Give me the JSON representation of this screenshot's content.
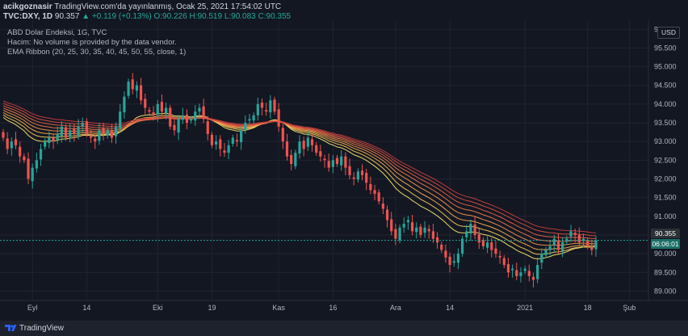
{
  "header": {
    "publisher": "acikgoznasir",
    "published_text": "TradingView.com'da yayınlanmış, Ocak 25, 2021 17:54:02 UTC",
    "symbol": "TVC:DXY, 1D",
    "last": "90.357",
    "change": "▲ +0.119 (+0.13%)",
    "open": "O:90.226",
    "high": "H:90.519",
    "low": "L:90.083",
    "close": "C:90.355"
  },
  "legend": {
    "title": "ABD Dolar Endeksi, 1G, TVC",
    "volume_note": "Hacim: No volume is provided by the data vendor.",
    "indicator": "EMA Ribbon (20, 25, 30, 35, 40, 45, 50, 55, close, 1)"
  },
  "price_axis": {
    "currency_button": "USD",
    "current_price": "90.355",
    "countdown": "06:06:01"
  },
  "footer": {
    "brand": "TradingView"
  },
  "colors": {
    "background": "#131722",
    "up": "#26a69a",
    "down": "#ef5350",
    "grid": "#1f2430"
  },
  "chart_data": {
    "type": "candlestick",
    "title": "ABD Dolar Endeksi, 1G, TVC",
    "ylim": [
      88.75,
      96.2
    ],
    "y_ticks": [
      "89.000",
      "89.500",
      "90.000",
      "90.500",
      "91.000",
      "91.500",
      "92.000",
      "92.500",
      "93.000",
      "93.500",
      "94.000",
      "94.500",
      "95.000",
      "95.500",
      "96.000"
    ],
    "x_ticks": [
      {
        "label": "Eyl",
        "index": 7
      },
      {
        "label": "14",
        "index": 20
      },
      {
        "label": "Eki",
        "index": 37
      },
      {
        "label": "19",
        "index": 50
      },
      {
        "label": "Kas",
        "index": 66
      },
      {
        "label": "16",
        "index": 79
      },
      {
        "label": "Ara",
        "index": 94
      },
      {
        "label": "14",
        "index": 107
      },
      {
        "label": "2021",
        "index": 125
      },
      {
        "label": "18",
        "index": 140
      },
      {
        "label": "Şub",
        "index": 150
      }
    ],
    "closes": [
      93.1,
      92.8,
      93.0,
      92.9,
      92.6,
      92.5,
      92.0,
      92.3,
      92.5,
      92.8,
      93.0,
      93.1,
      93.0,
      93.2,
      93.4,
      93.1,
      93.3,
      93.2,
      93.4,
      93.5,
      93.2,
      93.1,
      93.0,
      93.3,
      93.2,
      93.3,
      93.1,
      93.4,
      93.8,
      94.2,
      94.6,
      94.4,
      94.5,
      94.1,
      93.9,
      93.8,
      93.7,
      94.0,
      93.8,
      93.9,
      93.4,
      93.3,
      93.6,
      93.7,
      93.5,
      93.6,
      93.8,
      93.9,
      93.6,
      93.2,
      92.9,
      93.0,
      92.8,
      92.7,
      92.9,
      93.1,
      93.0,
      93.3,
      93.5,
      93.6,
      93.7,
      94.0,
      93.9,
      93.8,
      94.1,
      93.8,
      93.4,
      93.0,
      92.6,
      92.4,
      92.7,
      93.0,
      92.8,
      93.1,
      92.9,
      92.7,
      92.6,
      92.5,
      92.3,
      92.5,
      92.4,
      92.6,
      92.3,
      92.1,
      92.0,
      92.2,
      92.1,
      91.9,
      91.7,
      91.6,
      91.4,
      91.2,
      90.9,
      90.6,
      90.4,
      90.7,
      90.8,
      90.9,
      90.6,
      90.7,
      90.5,
      90.7,
      90.6,
      90.4,
      90.3,
      90.1,
      89.9,
      89.7,
      89.8,
      90.0,
      90.4,
      90.6,
      90.8,
      90.5,
      90.3,
      90.2,
      90.3,
      90.1,
      90.0,
      89.9,
      89.7,
      89.5,
      89.6,
      89.4,
      89.5,
      89.6,
      89.4,
      89.3,
      89.7,
      90.0,
      90.1,
      90.2,
      90.4,
      90.1,
      90.3,
      90.4,
      90.6,
      90.5,
      90.3,
      90.4,
      90.2,
      90.1,
      90.357
    ],
    "ema_ribbon_periods": [
      20,
      25,
      30,
      35,
      40,
      45,
      50,
      55
    ],
    "ema_colors": [
      "#f5e56b",
      "#f6c95a",
      "#f4ad52",
      "#f1934c",
      "#ec7a48",
      "#e26344",
      "#d54e40",
      "#c63d3c"
    ]
  }
}
